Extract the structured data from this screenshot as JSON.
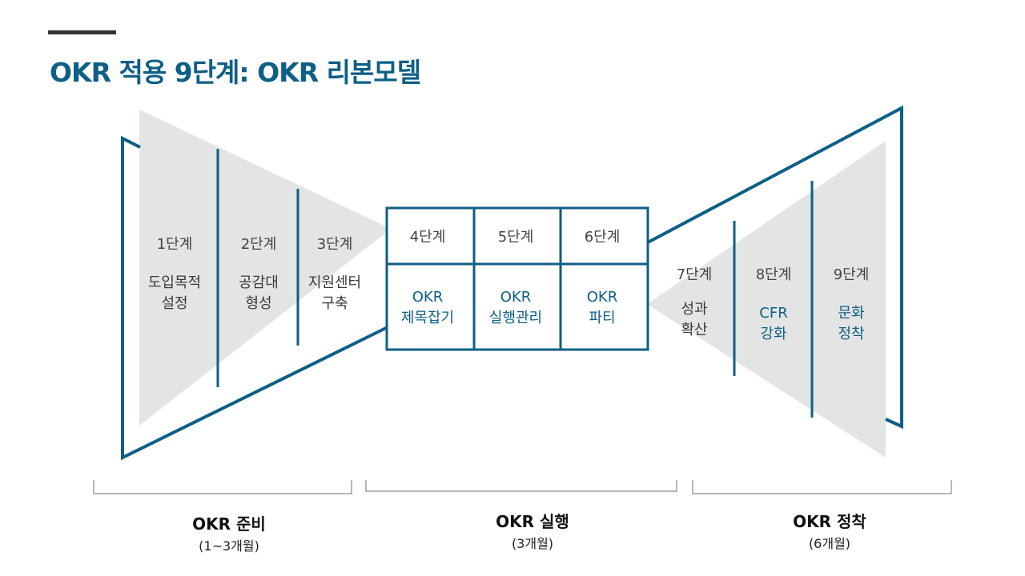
{
  "title": "OKR 적용 9단계: OKR 리본모델",
  "colors": {
    "accent": "#0e5f86",
    "triangle_fill": "#e3e4e4",
    "text": "#3a3a3a"
  },
  "steps": [
    {
      "step": "1단계",
      "name": "도입목적\n설정"
    },
    {
      "step": "2단계",
      "name": "공감대\n형성"
    },
    {
      "step": "3단계",
      "name": "지원센터\n구축"
    },
    {
      "step": "4단계",
      "name": "OKR\n제목잡기"
    },
    {
      "step": "5단계",
      "name": "OKR\n실행관리"
    },
    {
      "step": "6단계",
      "name": "OKR\n파티"
    },
    {
      "step": "7단계",
      "name": "성과\n확산"
    },
    {
      "step": "8단계",
      "name": "CFR\n강화"
    },
    {
      "step": "9단계",
      "name": "문화\n정착"
    }
  ],
  "phases": [
    {
      "title": "OKR 준비",
      "period": "(1~3개월)"
    },
    {
      "title": "OKR 실행",
      "period": "(3개월)"
    },
    {
      "title": "OKR 정착",
      "period": "(6개월)"
    }
  ]
}
